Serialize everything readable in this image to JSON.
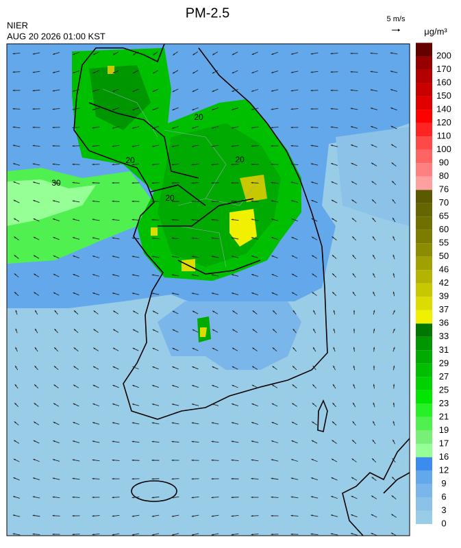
{
  "header": {
    "title": "PM-2.5",
    "agency": "NIER",
    "datetime": "AUG 20 2026 01:00 KST"
  },
  "wind_scale": {
    "label": "5 m/s"
  },
  "colorbar": {
    "unit": "μg/m³",
    "ticks": [
      0,
      3,
      6,
      9,
      12,
      16,
      17,
      19,
      21,
      23,
      25,
      27,
      29,
      31,
      33,
      36,
      37,
      39,
      42,
      46,
      50,
      55,
      60,
      65,
      70,
      76,
      80,
      90,
      100,
      110,
      120,
      140,
      150,
      160,
      170,
      200
    ],
    "colors": [
      "#99cce6",
      "#8cc2e8",
      "#7ab6ea",
      "#64a8ec",
      "#3c8cf0",
      "#96ff96",
      "#78f078",
      "#50f050",
      "#28f028",
      "#00e600",
      "#00d200",
      "#00be00",
      "#00aa00",
      "#009600",
      "#007800",
      "#f0f000",
      "#dcdc00",
      "#c8c800",
      "#b4b400",
      "#a0a000",
      "#8c8c00",
      "#7c7c00",
      "#707000",
      "#666600",
      "#5a5a00",
      "#ffa0a0",
      "#ff8080",
      "#ff6464",
      "#ff4848",
      "#ff2424",
      "#ff0000",
      "#e00000",
      "#c80000",
      "#b40000",
      "#960000",
      "#640000"
    ]
  },
  "map": {
    "contour_labels": [
      "30",
      "20",
      "20",
      "20",
      "20"
    ]
  }
}
